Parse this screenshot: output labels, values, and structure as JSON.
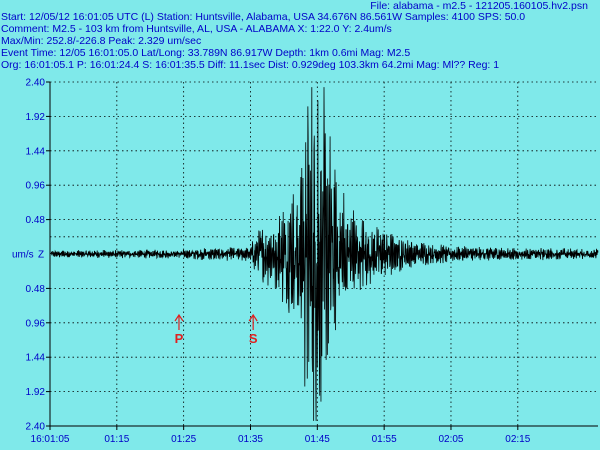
{
  "header": {
    "file_line": "File: alabama - m2.5 - 121205.160105.hv2.psn",
    "start_line": "Start: 12/05/12 16:01:05 UTC (L) Station: Huntsville, Alabama, USA 34.676N 86.561W Samples: 4100  SPS: 50.0",
    "comment_line": "Comment: M2.5 - 103 km from Huntsville, AL, USA - ALABAMA   X: 1:22.0 Y: 2.4um/s",
    "maxmin_line": "Max/Min: 252.8/-226.8  Peak: 2.329 um/sec",
    "event_line": "Event Time: 12/05 16:01:05.0 Lat/Long: 33.789N 86.917W Depth: 1km 0.6mi Mag: M2.5",
    "origin_line": "Org: 16:01:05.1 P: 16:01:24.4 S: 16:01:35.5 Diff: 11.1sec Dist: 0.929deg 103.3km 64.2mi  Mag: Ml?? Reg: 1"
  },
  "chart_data": {
    "type": "line",
    "title": "",
    "xlabel": "",
    "ylabel": "um/s",
    "channel_label": "Z",
    "y_tick_labels": [
      "2.40",
      "1.92",
      "1.44",
      "0.96",
      "0.48",
      "0.48",
      "0.96",
      "1.44",
      "1.92",
      "2.40"
    ],
    "y_tick_values": [
      2.4,
      1.92,
      1.44,
      0.96,
      0.48,
      -0.48,
      -0.96,
      -1.44,
      -1.92,
      -2.4
    ],
    "ylim": [
      -2.4,
      2.4
    ],
    "x_tick_labels": [
      "16:01:05",
      "01:15",
      "01:25",
      "01:35",
      "01:45",
      "01:55",
      "02:05",
      "02:15"
    ],
    "x_tick_seconds": [
      0,
      10,
      20,
      30,
      40,
      50,
      60,
      70
    ],
    "xlim_seconds": [
      0,
      82
    ],
    "grid": true,
    "phase_markers": [
      {
        "label": "P",
        "time_seconds": 19.3,
        "color": "#e02020"
      },
      {
        "label": "S",
        "time_seconds": 30.4,
        "color": "#e02020"
      }
    ],
    "envelope": {
      "time_seconds": [
        0,
        20,
        24,
        30,
        31,
        34,
        35,
        36,
        37,
        38,
        39,
        40,
        41,
        42,
        43,
        45,
        48,
        52,
        56,
        60,
        70,
        82
      ],
      "amplitude": [
        0.04,
        0.05,
        0.07,
        0.08,
        0.3,
        0.4,
        0.65,
        0.75,
        1.0,
        1.5,
        2.1,
        2.4,
        1.95,
        1.5,
        0.9,
        0.55,
        0.35,
        0.22,
        0.13,
        0.09,
        0.07,
        0.06
      ]
    },
    "peak_um_per_s": 2.329,
    "line_color": "#000000",
    "grid_color": "#000000",
    "tick_color": "#0000c8"
  }
}
